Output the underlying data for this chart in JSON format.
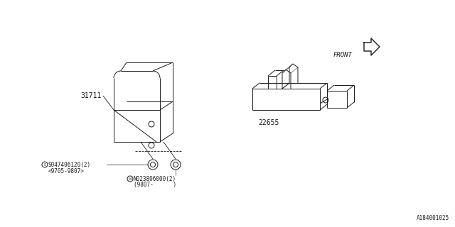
{
  "bg_color": "#ffffff",
  "line_color": "#1a1a1a",
  "part1_label": "31711",
  "part2_label": "22655",
  "screw_s_line1": "S047406120(2)",
  "screw_s_line2": "<9705-9807>",
  "screw_n_line1": "N023806000(2)",
  "screw_n_line2": "(9807-      )",
  "diagram_id": "A184001025",
  "front_label": "FRONT"
}
